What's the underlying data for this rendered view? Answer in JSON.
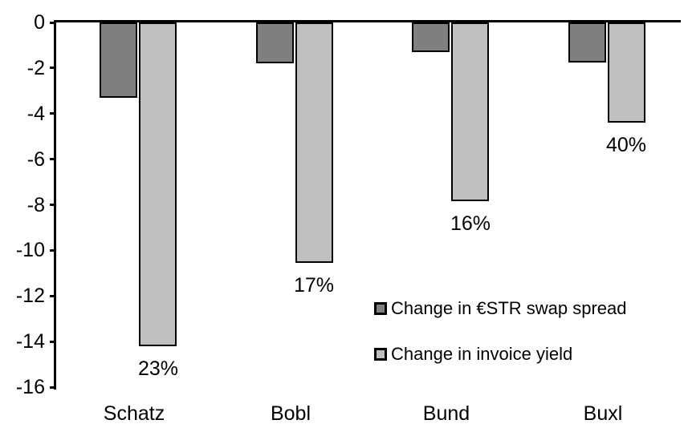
{
  "chart_data": {
    "type": "bar",
    "title": "",
    "xlabel": "",
    "ylabel": "",
    "categories": [
      "Schatz",
      "Bobl",
      "Bund",
      "Buxl"
    ],
    "series": [
      {
        "name": "Change in €STR swap spread",
        "color": "#7f7f7f",
        "values": [
          -3.3,
          -1.8,
          -1.3,
          -1.75
        ]
      },
      {
        "name": "Change in invoice yield",
        "color": "#bfbfbf",
        "values": [
          -14.2,
          -10.55,
          -7.85,
          -4.4
        ],
        "data_labels": [
          "23%",
          "17%",
          "16%",
          "40%"
        ]
      }
    ],
    "ylim": [
      -16,
      0
    ],
    "yticks": [
      0,
      -2,
      -4,
      -6,
      -8,
      -10,
      -12,
      -14,
      -16
    ],
    "ytick_labels": [
      "0",
      "-2",
      "-4",
      "-6",
      "-8",
      "-10",
      "-12",
      "-14",
      "-16"
    ],
    "grid": false,
    "legend_position": "inside-center-right",
    "bar_border_color": "#000000",
    "axis_color": "#000000",
    "text_color": "#000000",
    "background_color": "#ffffff"
  }
}
